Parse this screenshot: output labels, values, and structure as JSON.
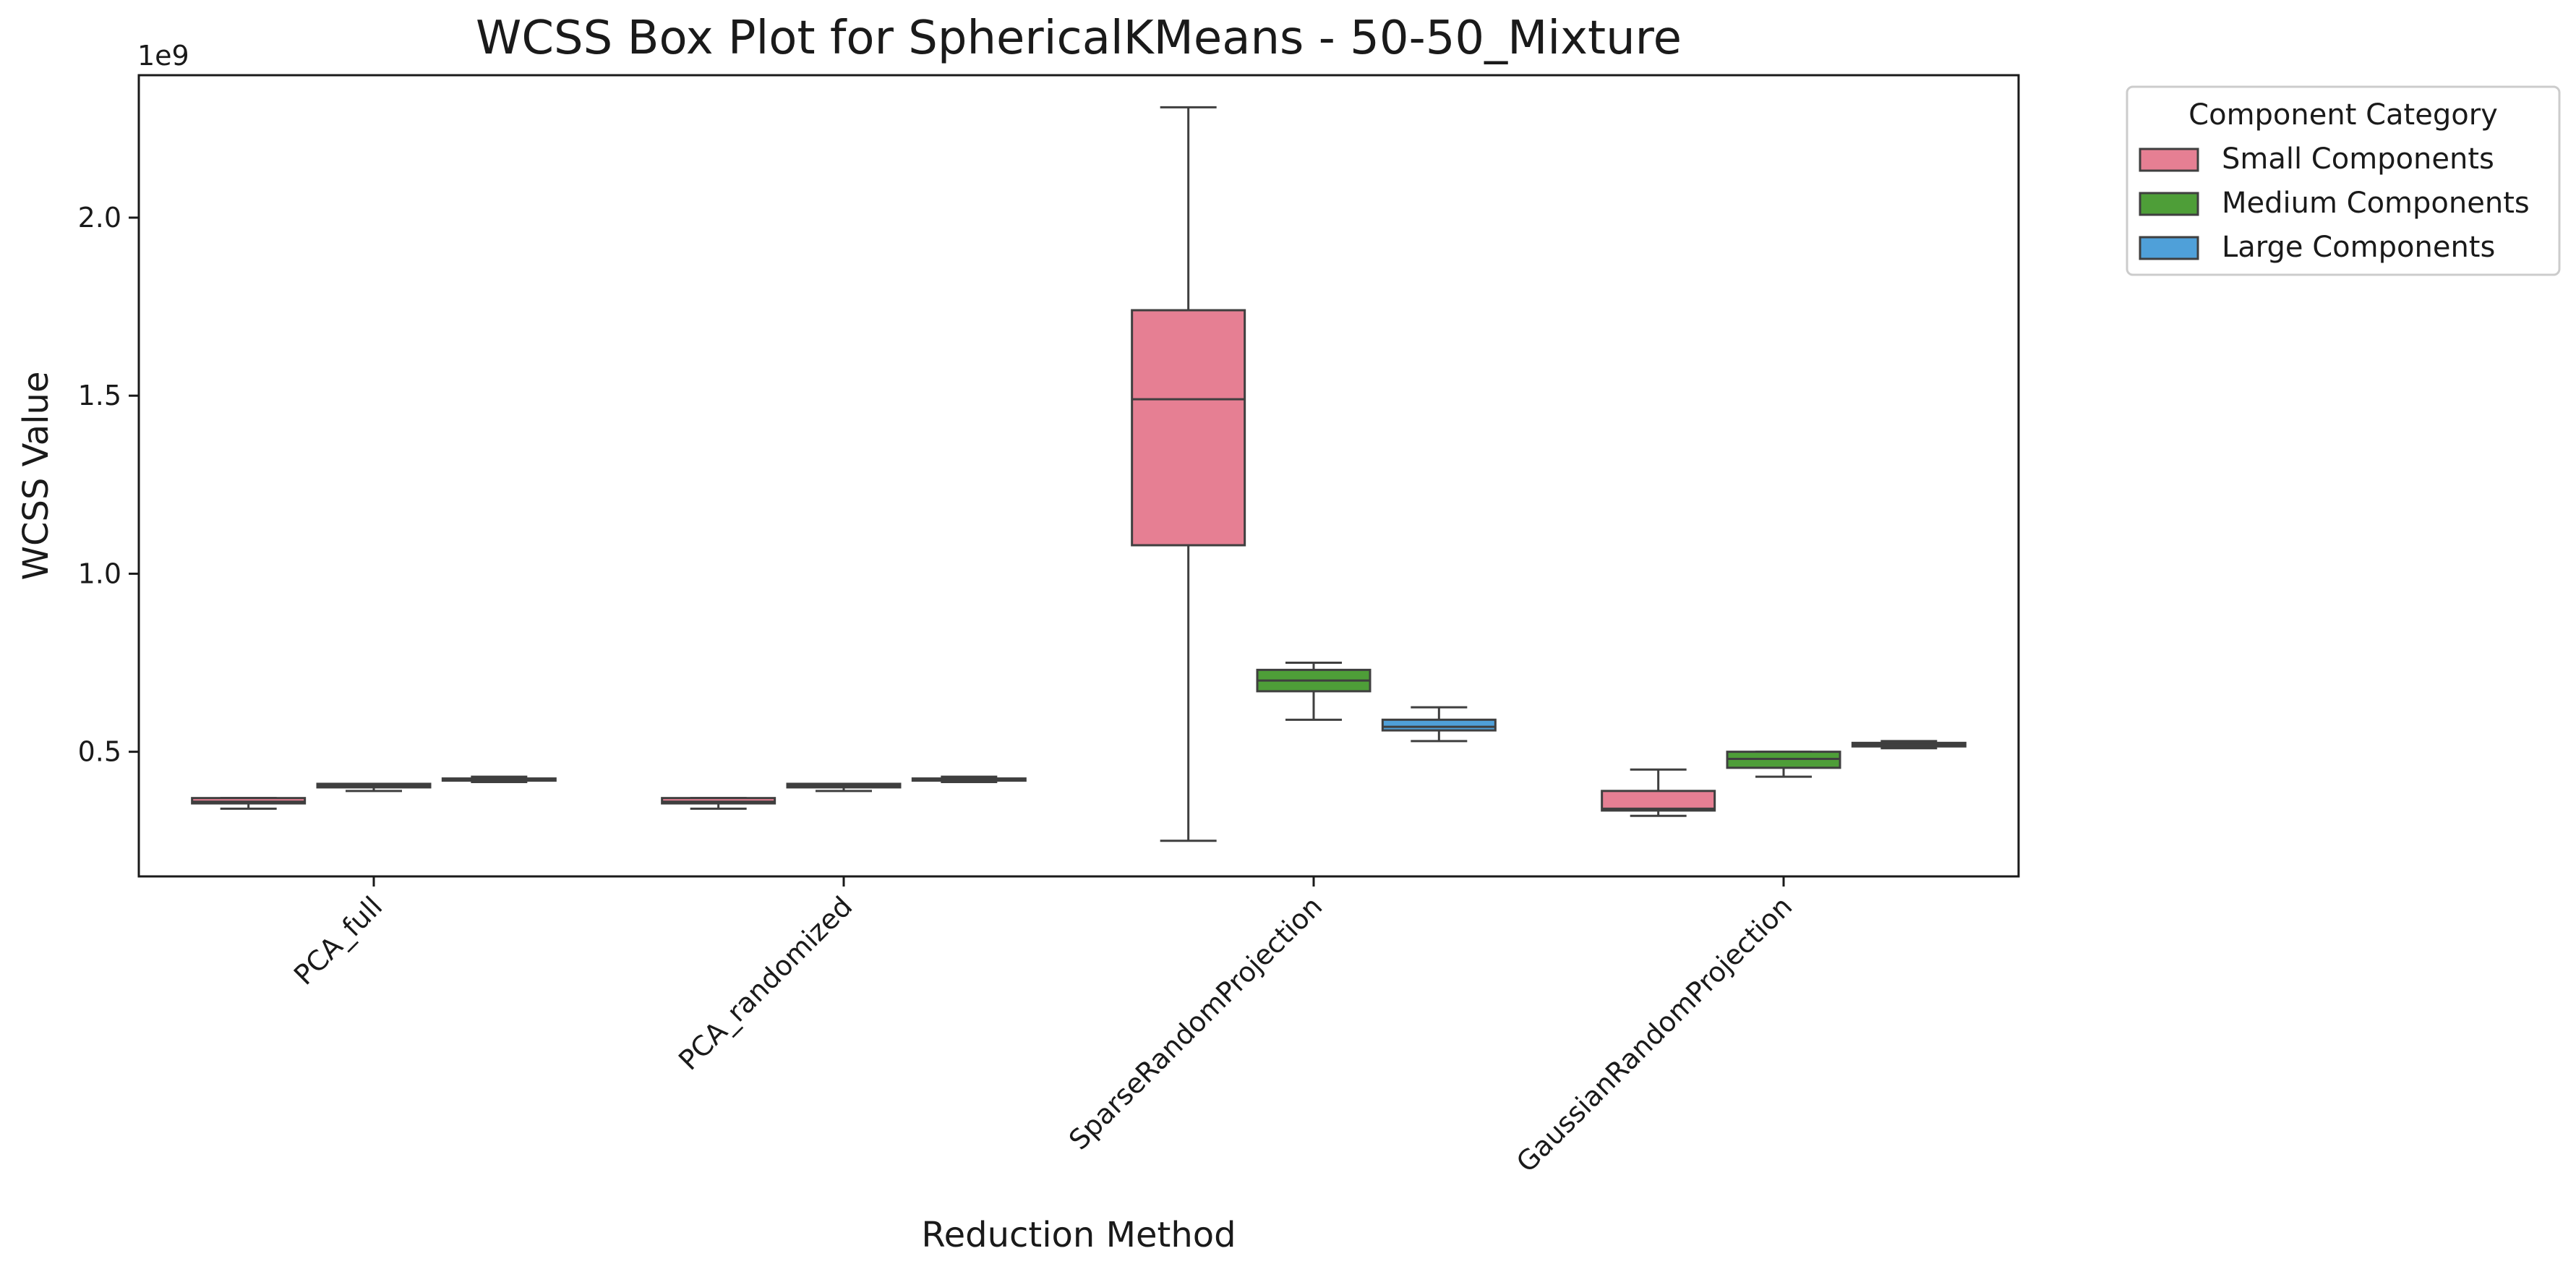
{
  "chart_data": {
    "type": "box",
    "title": "WCSS Box Plot for SphericalKMeans - 50-50_Mixture",
    "xlabel": "Reduction Method",
    "ylabel": "WCSS Value",
    "y_multiplier_label": "1e9",
    "ylim": [
      0.15,
      2.4
    ],
    "yticks": [
      0.5,
      1.0,
      1.5,
      2.0
    ],
    "ytick_labels": [
      "0.5",
      "1.0",
      "1.5",
      "2.0"
    ],
    "grid": false,
    "legend": {
      "title": "Component Category",
      "placement": "outside-top-right"
    },
    "categories": [
      "PCA_full",
      "PCA_randomized",
      "SparseRandomProjection",
      "GaussianRandomProjection"
    ],
    "series": [
      {
        "name": "Small Components",
        "color": "#e67f93",
        "boxes": [
          {
            "min": 0.34,
            "q1": 0.355,
            "median": 0.36,
            "q3": 0.37,
            "max": 0.37
          },
          {
            "min": 0.34,
            "q1": 0.355,
            "median": 0.36,
            "q3": 0.37,
            "max": 0.37
          },
          {
            "min": 0.25,
            "q1": 1.08,
            "median": 1.49,
            "q3": 1.74,
            "max": 2.31
          },
          {
            "min": 0.32,
            "q1": 0.335,
            "median": 0.34,
            "q3": 0.39,
            "max": 0.45
          }
        ]
      },
      {
        "name": "Medium Components",
        "color": "#4e9e38",
        "boxes": [
          {
            "min": 0.39,
            "q1": 0.4,
            "median": 0.405,
            "q3": 0.41,
            "max": 0.41
          },
          {
            "min": 0.39,
            "q1": 0.4,
            "median": 0.405,
            "q3": 0.41,
            "max": 0.41
          },
          {
            "min": 0.59,
            "q1": 0.67,
            "median": 0.7,
            "q3": 0.73,
            "max": 0.75
          },
          {
            "min": 0.43,
            "q1": 0.455,
            "median": 0.48,
            "q3": 0.5,
            "max": 0.5
          }
        ]
      },
      {
        "name": "Large Components",
        "color": "#4fa0d9",
        "boxes": [
          {
            "min": 0.415,
            "q1": 0.42,
            "median": 0.42,
            "q3": 0.425,
            "max": 0.43
          },
          {
            "min": 0.415,
            "q1": 0.42,
            "median": 0.42,
            "q3": 0.425,
            "max": 0.43
          },
          {
            "min": 0.53,
            "q1": 0.56,
            "median": 0.57,
            "q3": 0.59,
            "max": 0.625
          },
          {
            "min": 0.51,
            "q1": 0.515,
            "median": 0.52,
            "q3": 0.525,
            "max": 0.53
          }
        ]
      }
    ]
  }
}
